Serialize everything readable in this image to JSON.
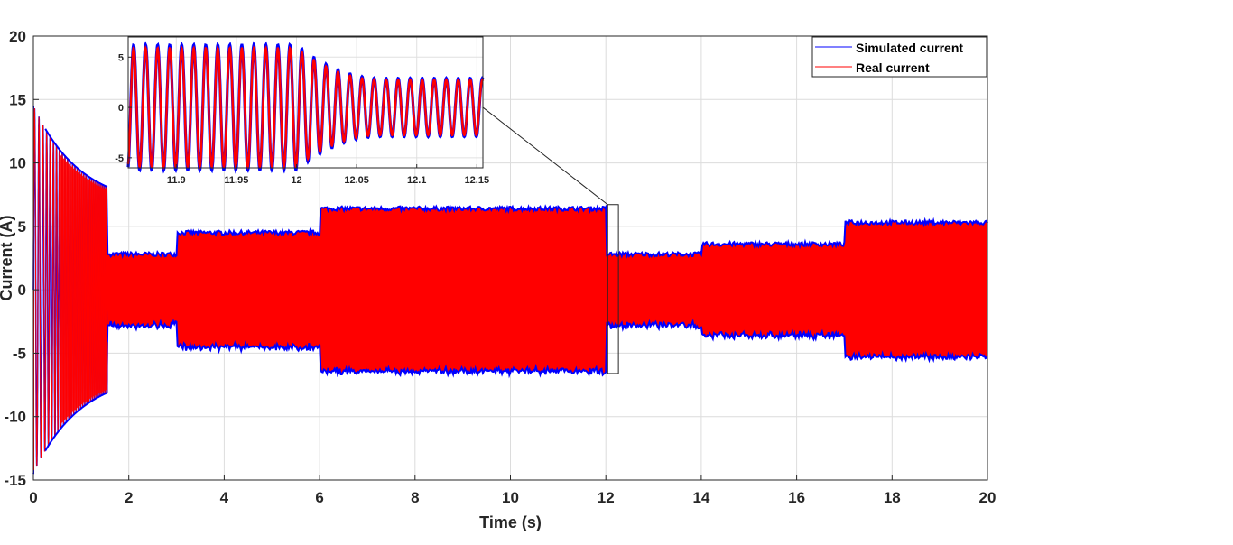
{
  "chart_data": [
    {
      "type": "line",
      "title": "",
      "xlabel": "Time (s)",
      "ylabel": "Current (A)",
      "xlim": [
        0,
        20
      ],
      "ylim": [
        -15,
        20
      ],
      "xticks": [
        0,
        2,
        4,
        6,
        8,
        10,
        12,
        14,
        16,
        18,
        20
      ],
      "yticks": [
        -15,
        -10,
        -5,
        0,
        5,
        10,
        15,
        20
      ],
      "grid": true,
      "legend_position": "top-right",
      "series": [
        {
          "name": "Simulated current",
          "color": "#0000ff"
        },
        {
          "name": "Real current",
          "color": "#ff0000"
        }
      ],
      "envelope_segments": [
        {
          "t_start": 0.0,
          "t_end": 1.55,
          "amplitude_start": 14.5,
          "amplitude_end": 6.5,
          "note": "startup transient decaying"
        },
        {
          "t_start": 1.55,
          "t_end": 3.0,
          "amplitude": 2.8
        },
        {
          "t_start": 3.0,
          "t_end": 6.0,
          "amplitude": 4.5
        },
        {
          "t_start": 6.0,
          "t_end": 12.0,
          "amplitude": 6.4
        },
        {
          "t_start": 12.0,
          "t_end": 14.0,
          "amplitude": 2.8
        },
        {
          "t_start": 14.0,
          "t_end": 17.0,
          "amplitude": 3.6
        },
        {
          "t_start": 17.0,
          "t_end": 20.0,
          "amplitude": 5.3
        }
      ],
      "zoom_box": {
        "x_range": [
          11.85,
          12.15
        ],
        "y_range": [
          -6.6,
          7.0
        ]
      }
    },
    {
      "type": "line",
      "title": "",
      "description": "inset zoom",
      "xlim": [
        11.86,
        12.155
      ],
      "ylim": [
        -6,
        7
      ],
      "xticks": [
        11.9,
        11.95,
        12,
        12.05,
        12.1,
        12.15
      ],
      "xtick_labels": [
        "11.9",
        "11.95",
        "12",
        "12.05",
        "12.1",
        "12.15"
      ],
      "yticks": [
        -5,
        0,
        5
      ],
      "grid": true,
      "frequency_hz": 100,
      "amplitude_before": 6.2,
      "amplitude_after": 2.9,
      "transition_start": 12.0,
      "transition_end": 12.07
    }
  ]
}
